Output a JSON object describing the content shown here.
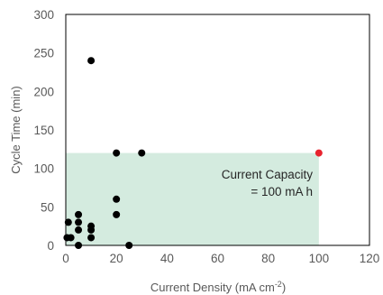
{
  "chart_data": {
    "type": "scatter",
    "xlabel": "Current Density (mA cm",
    "xlabel_superscript": "-2",
    "xlabel_close": ")",
    "ylabel": "Cycle Time (min)",
    "xlim": [
      0,
      120
    ],
    "ylim": [
      0,
      300
    ],
    "x_ticks": [
      0,
      20,
      40,
      60,
      80,
      100,
      120
    ],
    "y_ticks": [
      0,
      50,
      100,
      150,
      200,
      250,
      300
    ],
    "grid": false,
    "shaded_region": {
      "x": [
        0,
        100
      ],
      "y": [
        0,
        120
      ],
      "color": "#d4ebdf"
    },
    "annotation": {
      "line1": "Current Capacity",
      "line2": "= 100 mA h"
    },
    "series": [
      {
        "color": "#000000",
        "points": [
          [
            0.5,
            10
          ],
          [
            1,
            30
          ],
          [
            2,
            10
          ],
          [
            5,
            40
          ],
          [
            5,
            30
          ],
          [
            5,
            20
          ],
          [
            5,
            0
          ],
          [
            10,
            25
          ],
          [
            10,
            20
          ],
          [
            10,
            10
          ],
          [
            10,
            240
          ],
          [
            20,
            120
          ],
          [
            20,
            60
          ],
          [
            20,
            40
          ],
          [
            25,
            0
          ],
          [
            30,
            120
          ]
        ]
      },
      {
        "color": "#e8232e",
        "points": [
          [
            100,
            120
          ]
        ]
      }
    ]
  }
}
